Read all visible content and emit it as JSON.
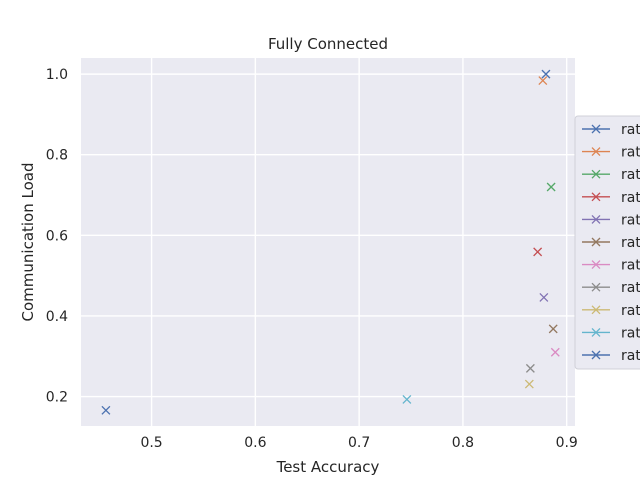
{
  "chart_data": {
    "type": "scatter",
    "title": "Fully Connected",
    "xlabel": "Test Accuracy",
    "ylabel": "Communication Load",
    "xlim": [
      0.432,
      0.908
    ],
    "ylim": [
      0.127,
      1.04
    ],
    "x_ticks": [
      "0.5",
      "0.6",
      "0.7",
      "0.8",
      "0.9"
    ],
    "x_tick_values": [
      0.5,
      0.6,
      0.7,
      0.8,
      0.9
    ],
    "y_ticks": [
      "0.2",
      "0.4",
      "0.6",
      "0.8",
      "1.0"
    ],
    "y_tick_values": [
      0.2,
      0.4,
      0.6,
      0.8,
      1.0
    ],
    "grid": true,
    "legend_position": "center-right",
    "marker": "x",
    "series": [
      {
        "name": "rat",
        "color": "#4c72b0",
        "x": 0.88,
        "y": 1.0
      },
      {
        "name": "rat",
        "color": "#dd8452",
        "x": 0.877,
        "y": 0.984
      },
      {
        "name": "rat",
        "color": "#55a868",
        "x": 0.885,
        "y": 0.72
      },
      {
        "name": "rat",
        "color": "#c44e52",
        "x": 0.872,
        "y": 0.559
      },
      {
        "name": "rat",
        "color": "#8172b3",
        "x": 0.878,
        "y": 0.446
      },
      {
        "name": "rat",
        "color": "#937860",
        "x": 0.887,
        "y": 0.368
      },
      {
        "name": "rat",
        "color": "#da8bc3",
        "x": 0.889,
        "y": 0.31
      },
      {
        "name": "rat",
        "color": "#8c8c8c",
        "x": 0.865,
        "y": 0.27
      },
      {
        "name": "rat",
        "color": "#ccb974",
        "x": 0.864,
        "y": 0.231
      },
      {
        "name": "rat",
        "color": "#64b5cd",
        "x": 0.746,
        "y": 0.193
      },
      {
        "name": "rat",
        "color": "#4c72b0",
        "x": 0.456,
        "y": 0.166
      }
    ]
  }
}
